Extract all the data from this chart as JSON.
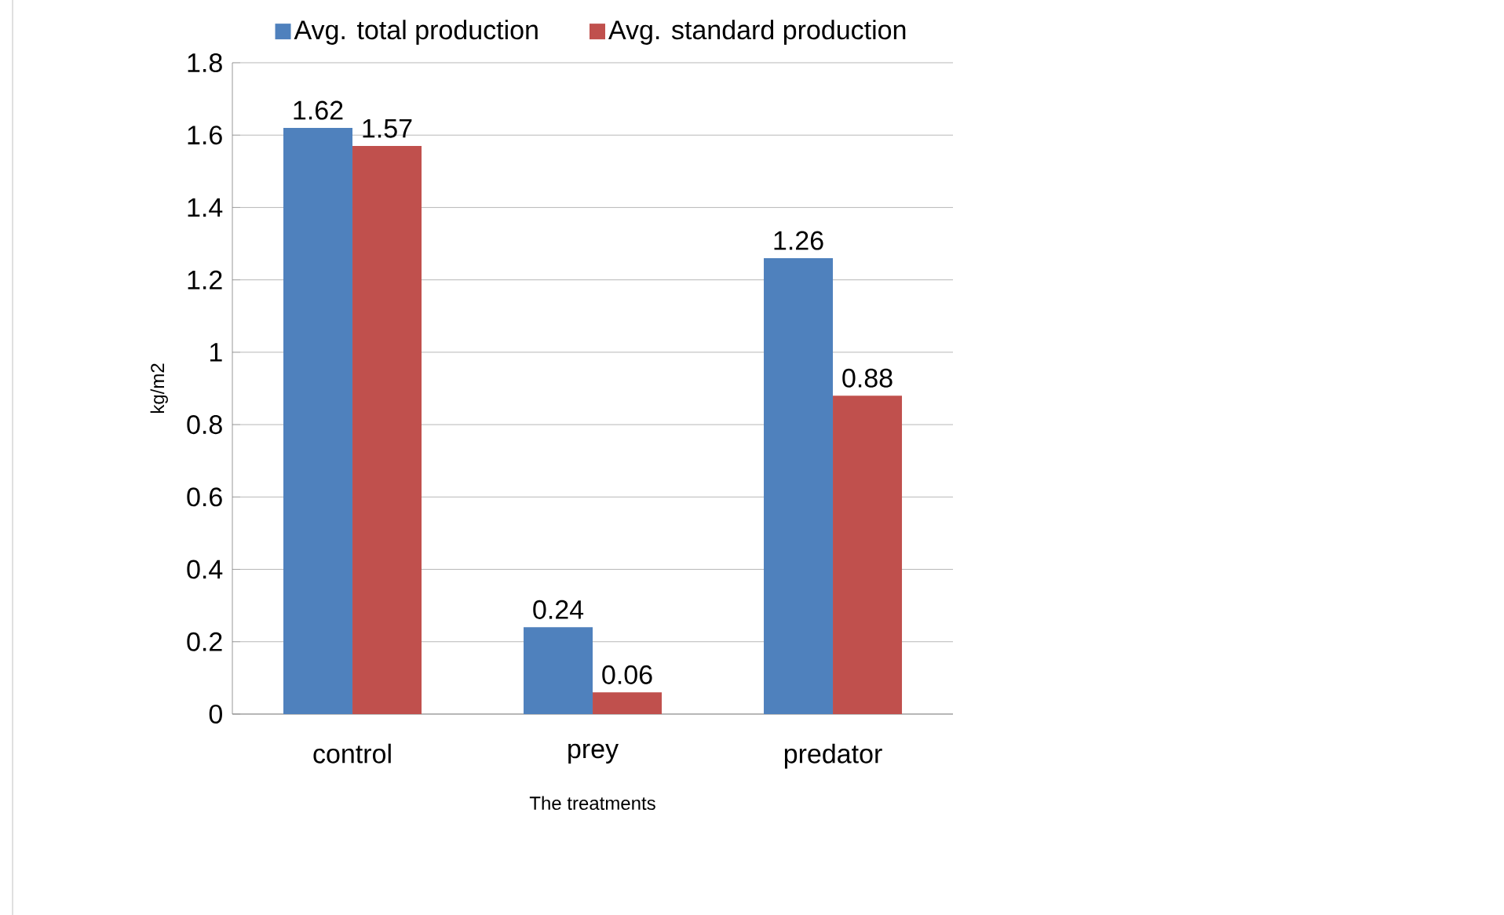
{
  "chart_data": {
    "type": "bar",
    "xlabel": "The treatments",
    "ylabel": "kg/m2",
    "categories": [
      "control",
      "prey",
      "predator"
    ],
    "series": [
      {
        "name": "Avg. total production",
        "color": "#4f81bd",
        "values": [
          1.62,
          0.24,
          1.26
        ]
      },
      {
        "name": "Avg. standard production",
        "color": "#c0504d",
        "values": [
          1.57,
          0.06,
          0.88
        ]
      }
    ],
    "ylim": [
      0,
      1.8
    ],
    "yticks": [
      0,
      0.2,
      0.4,
      0.6,
      0.8,
      1,
      1.2,
      1.4,
      1.6,
      1.8
    ],
    "grid": "y",
    "legend": "top",
    "data_labels": true
  }
}
